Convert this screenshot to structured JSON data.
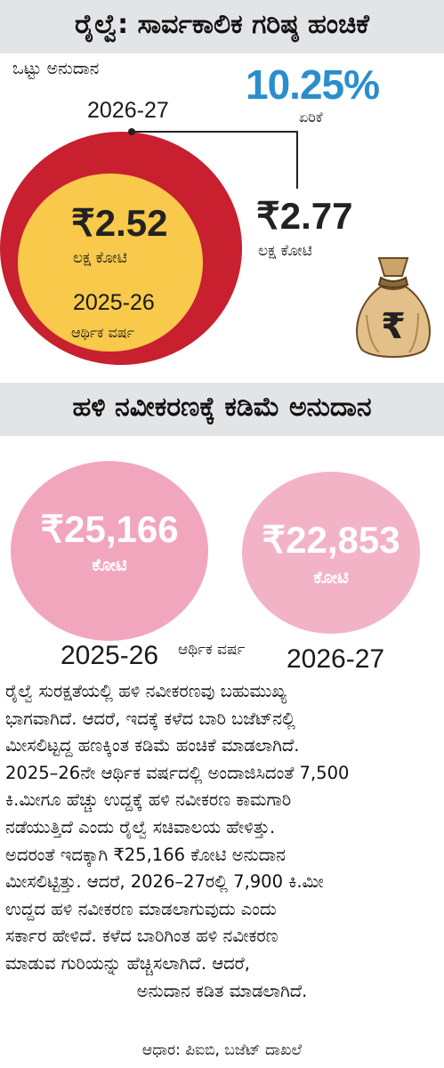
{
  "section1": {
    "title": "ರೈಲ್ವೆ: ಸಾರ್ವಕಾಲಿಕ ಗರಿಷ್ಠ ಹಂಚಿಕೆ",
    "total_grant_label": "ಒಟ್ಟು ಅನುದಾನ",
    "year_current": "2026-27",
    "increase_value": "10.25%",
    "increase_label": "ಏರಿಕೆ",
    "current_amount": "₹2.77",
    "current_unit": "ಲಕ್ಷ ಕೋಟಿ",
    "previous_amount": "₹2.52",
    "previous_unit": "ಲಕ್ಷ ಕೋಟಿ",
    "previous_year": "2025-26",
    "previous_year_label": "ಆರ್ಥಿಕ ವರ್ಷ",
    "money_bag_symbol": "₹",
    "colors": {
      "outer_circle": "#c8202f",
      "inner_circle": "#f8c94a",
      "increase": "#2a8ecd"
    }
  },
  "section2": {
    "title": "ಹಳಿ ನವೀಕರಣಕ್ಕೆ ಕಡಿಮೆ ಅನುದಾನ",
    "bubble_prev_amount": "₹25,166",
    "bubble_prev_unit": "ಕೋಟಿ",
    "bubble_curr_amount": "₹22,853",
    "bubble_curr_unit": "ಕೋಟಿ",
    "year_prev": "2025-26",
    "year_label": "ಆರ್ಥಿಕ ವರ್ಷ",
    "year_curr": "2026-27",
    "colors": {
      "bubble_prev": "#f2a6bd",
      "bubble_curr": "#f3b3c6"
    }
  },
  "paragraph": {
    "lines": [
      "ರೈಲ್ವೆ ಸುರಕ್ಷತೆಯಲ್ಲಿ ಹಳಿ ನವೀಕರಣವು ಬಹುಮುಖ್ಯ",
      "ಭಾಗವಾಗಿದೆ. ಆದರೆ, ಇದಕ್ಕೆ ಕಳೆದ ಬಾರಿ ಬಜೆಟ್‌ನಲ್ಲಿ",
      "ಮೀಸಲಿಟ್ಟದ್ದ ಹಣಕ್ಕಿಂತ ಕಡಿಮೆ ಹಂಚಿಕೆ ಮಾಡಲಾಗಿದೆ.",
      "2025–26ನೇ ಆರ್ಥಿಕ ವರ್ಷದಲ್ಲಿ ಅಂದಾಜಿಸಿದಂತೆ 7,500",
      "ಕಿ.ಮೀಗೂ ಹೆಚ್ಚು ಉದ್ದಕ್ಕೆ ಹಳಿ ನವೀಕರಣ ಕಾಮಗಾರಿ",
      "ನಡೆಯುತ್ತಿದೆ ಎಂದು ರೈಲ್ವೆ ಸಚಿವಾಲಯ ಹೇಳಿತ್ತು.",
      "ಅದರಂತೆ ಇದಕ್ಕಾಗಿ ₹25,166 ಕೋಟಿ ಅನುದಾನ",
      "ಮೀಸಲಿಟ್ಟಿತ್ತು. ಆದರೆ, 2026–27ರಲ್ಲಿ 7,900 ಕಿ.ಮೀ",
      "ಉದ್ದದ ಹಳಿ ನವೀಕರಣ ಮಾಡಲಾಗುವುದು ಎಂದು",
      "ಸರ್ಕಾರ ಹೇಳಿದೆ. ಕಳೆದ ಬಾರಿಗಿಂತ ಹಳಿ ನವೀಕರಣ",
      "ಮಾಡುವ ಗುರಿಯನ್ನು ಹೆಚ್ಚಿಸಲಾಗಿದೆ. ಆದರೆ,",
      "ಅನುದಾನ ಕಡಿತ ಮಾಡಲಾಗಿದೆ."
    ],
    "source": "ಆಧಾರ: ಪಿಐಬಿ, ಬಜೆಟ್ ದಾಖಲೆ"
  }
}
